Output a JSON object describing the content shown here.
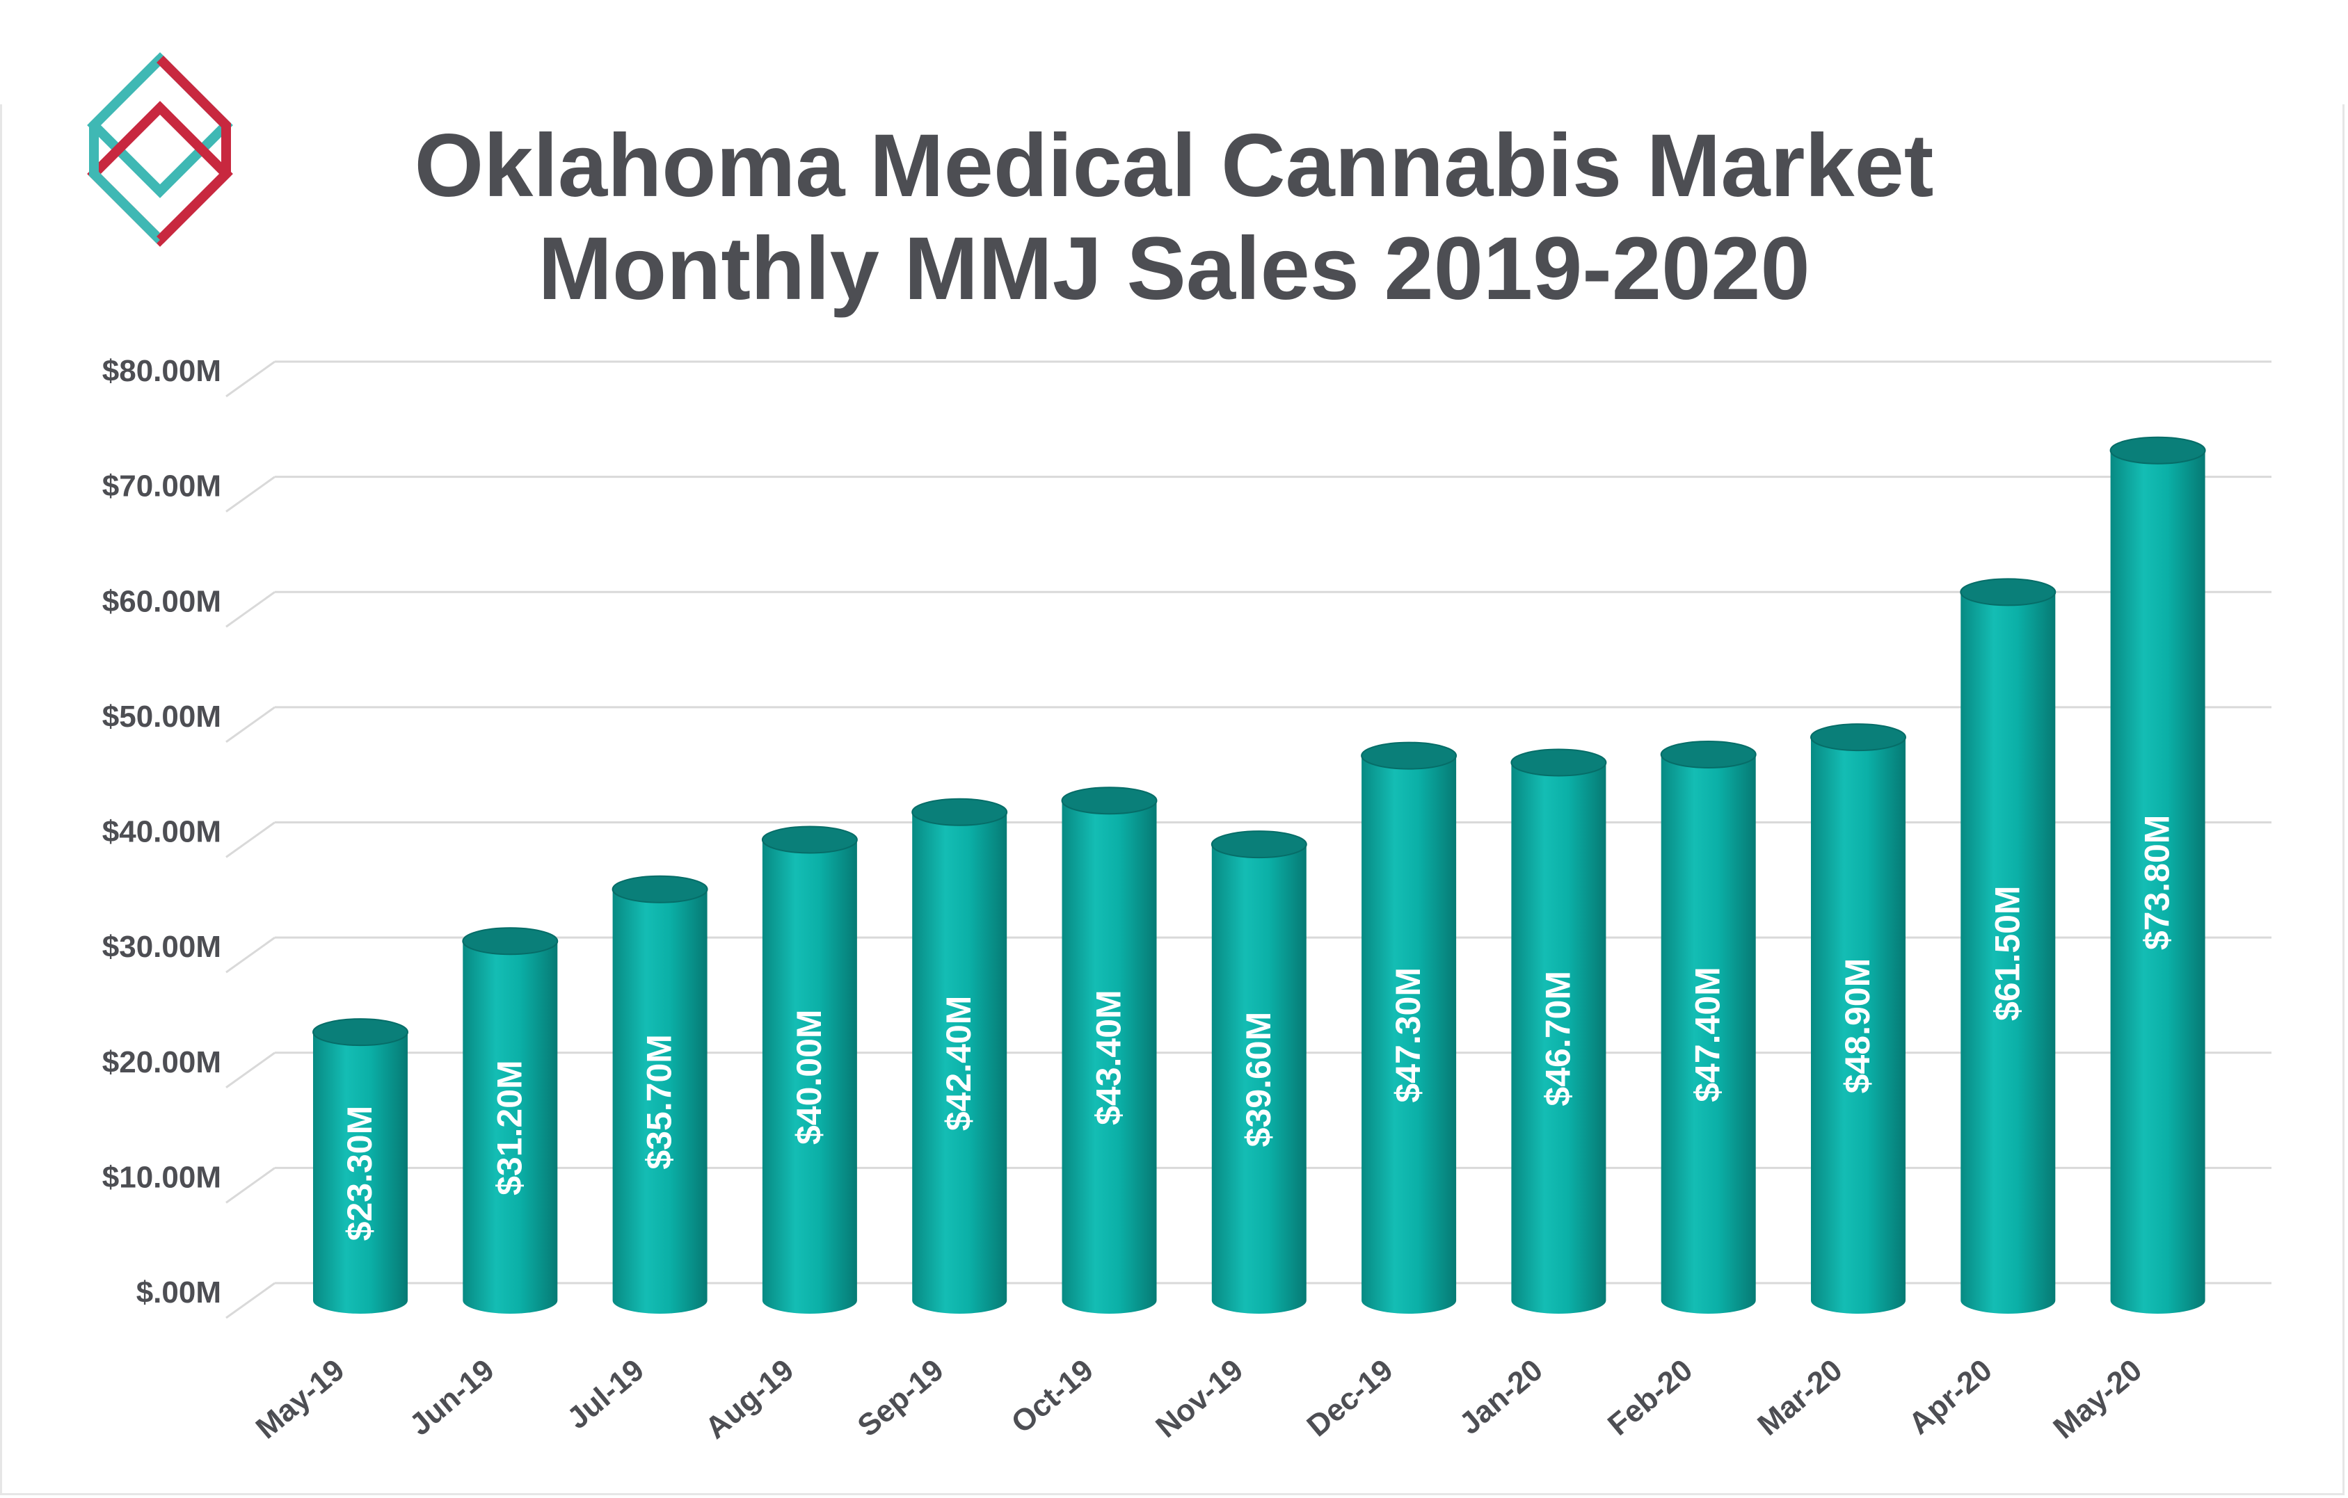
{
  "brand": {
    "logo": "diamond-logo-icon",
    "colors": {
      "teal": "#3fb8b4",
      "red": "#c8283f"
    }
  },
  "chart_data": {
    "type": "bar",
    "title": "Oklahoma Medical Cannabis Market",
    "subtitle": "Monthly MMJ Sales 2019-2020",
    "xlabel": "",
    "ylabel": "",
    "categories": [
      "May-19",
      "Jun-19",
      "Jul-19",
      "Aug-19",
      "Sep-19",
      "Oct-19",
      "Nov-19",
      "Dec-19",
      "Jan-20",
      "Feb-20",
      "Mar-20",
      "Apr-20",
      "May-20"
    ],
    "values": [
      23.3,
      31.2,
      35.7,
      40.0,
      42.4,
      43.4,
      39.6,
      47.3,
      46.7,
      47.4,
      48.9,
      61.5,
      73.8
    ],
    "data_labels": [
      "$23.30M",
      "$31.20M",
      "$35.70M",
      "$40.00M",
      "$42.40M",
      "$43.40M",
      "$39.60M",
      "$47.30M",
      "$46.70M",
      "$47.40M",
      "$48.90M",
      "$61.50M",
      "$73.80M"
    ],
    "y_ticks": [
      0,
      10,
      20,
      30,
      40,
      50,
      60,
      70,
      80
    ],
    "y_tick_labels": [
      "$.00M",
      "$10.00M",
      "$20.00M",
      "$30.00M",
      "$40.00M",
      "$50.00M",
      "$60.00M",
      "$70.00M",
      "$80.00M"
    ],
    "ylim": [
      0,
      80
    ],
    "grid": true,
    "legend": "none",
    "bar_style": "3d-cylinder",
    "bar_color": "#0aa79e"
  }
}
